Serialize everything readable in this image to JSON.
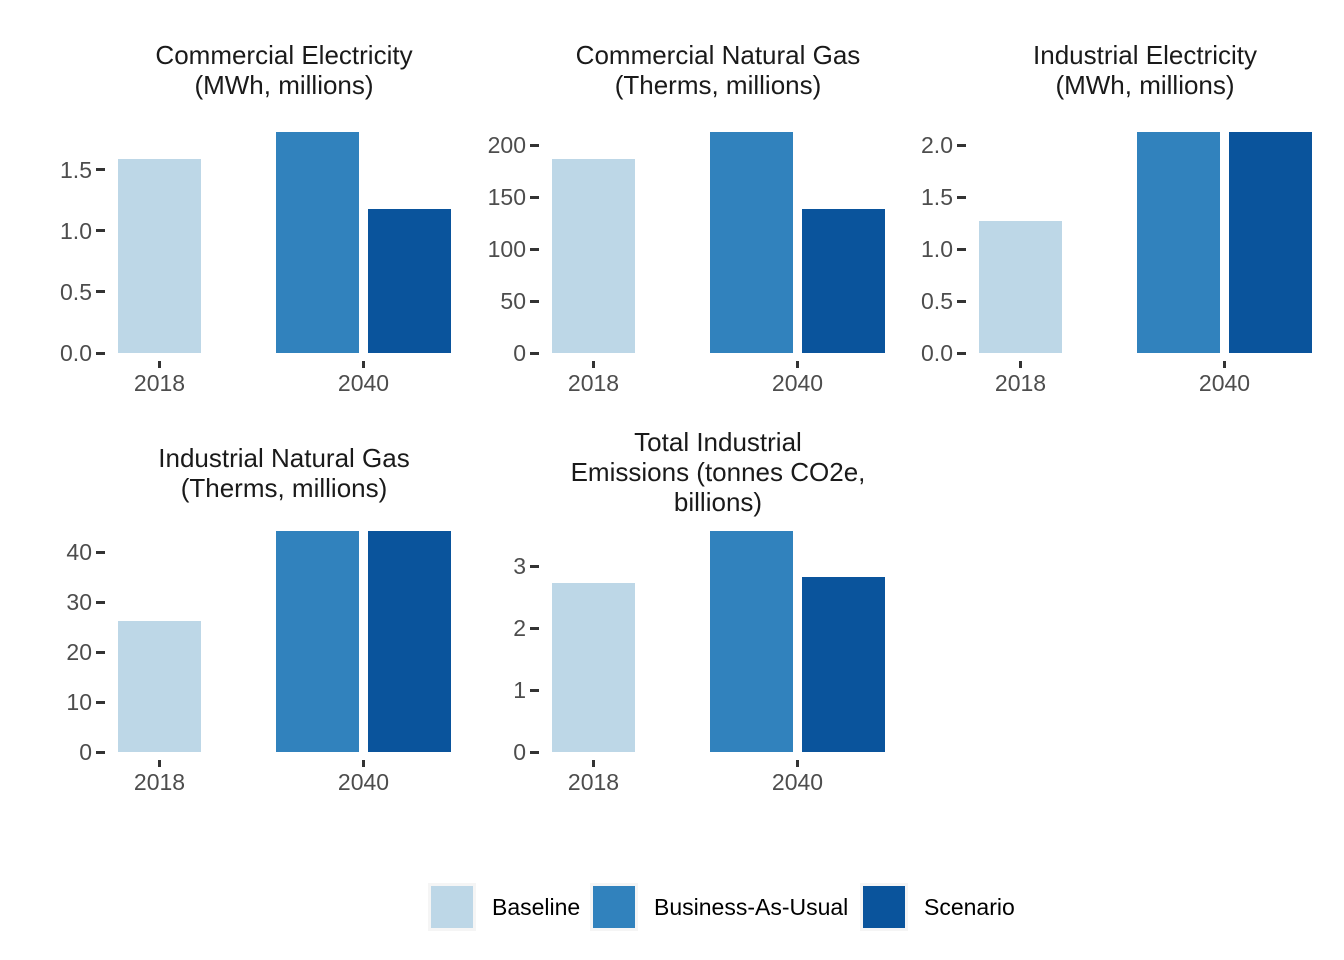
{
  "figure": {
    "description": "Faceted bar chart comparing Baseline (2018) with Business-As-Usual and Scenario (2040) projections across five energy and emissions measures"
  },
  "colors": {
    "baseline": "#BDD7E7",
    "business_as_usual": "#3182BD",
    "scenario": "#0A549C",
    "axis_text": "#4D4D4D",
    "tick_mark": "#333333",
    "title_text": "#1A1A1A",
    "background": "#FFFFFF",
    "legend_key_bg": "#F5F5F5",
    "legend_text": "#000000"
  },
  "legend": {
    "position": "bottom",
    "items": [
      {
        "label": "Baseline",
        "color": "#BDD7E7"
      },
      {
        "label": "Business-As-Usual",
        "color": "#3182BD"
      },
      {
        "label": "Scenario",
        "color": "#0A549C"
      }
    ]
  },
  "chart_data": [
    {
      "type": "bar",
      "id": "commercial-electricity",
      "title": "Commercial Electricity\n(MWh, millions)",
      "categories": [
        "2018",
        "2040"
      ],
      "series": [
        {
          "name": "Baseline",
          "values": [
            1.59,
            null
          ]
        },
        {
          "name": "Business-As-Usual",
          "values": [
            null,
            1.81
          ]
        },
        {
          "name": "Scenario",
          "values": [
            null,
            1.18
          ]
        }
      ],
      "yticks": [
        {
          "v": 0.0,
          "label": "0.0"
        },
        {
          "v": 0.5,
          "label": "0.5"
        },
        {
          "v": 1.0,
          "label": "1.0"
        },
        {
          "v": 1.5,
          "label": "1.5"
        }
      ],
      "ylim": [
        0,
        1.81
      ],
      "grid": false
    },
    {
      "type": "bar",
      "id": "commercial-natural-gas",
      "title": "Commercial Natural Gas\n(Therms, millions)",
      "categories": [
        "2018",
        "2040"
      ],
      "series": [
        {
          "name": "Baseline",
          "values": [
            187,
            null
          ]
        },
        {
          "name": "Business-As-Usual",
          "values": [
            null,
            213
          ]
        },
        {
          "name": "Scenario",
          "values": [
            null,
            139
          ]
        }
      ],
      "yticks": [
        {
          "v": 0,
          "label": "0"
        },
        {
          "v": 50,
          "label": "50"
        },
        {
          "v": 100,
          "label": "100"
        },
        {
          "v": 150,
          "label": "150"
        },
        {
          "v": 200,
          "label": "200"
        }
      ],
      "ylim": [
        0,
        213
      ],
      "grid": false
    },
    {
      "type": "bar",
      "id": "industrial-electricity",
      "title": "Industrial Electricity\n(MWh, millions)",
      "categories": [
        "2018",
        "2040"
      ],
      "series": [
        {
          "name": "Baseline",
          "values": [
            1.27,
            null
          ]
        },
        {
          "name": "Business-As-Usual",
          "values": [
            null,
            2.13
          ]
        },
        {
          "name": "Scenario",
          "values": [
            null,
            2.13
          ]
        }
      ],
      "yticks": [
        {
          "v": 0.0,
          "label": "0.0"
        },
        {
          "v": 0.5,
          "label": "0.5"
        },
        {
          "v": 1.0,
          "label": "1.0"
        },
        {
          "v": 1.5,
          "label": "1.5"
        },
        {
          "v": 2.0,
          "label": "2.0"
        }
      ],
      "ylim": [
        0,
        2.13
      ],
      "grid": false
    },
    {
      "type": "bar",
      "id": "industrial-natural-gas",
      "title": "Industrial Natural Gas\n(Therms, millions)",
      "categories": [
        "2018",
        "2040"
      ],
      "series": [
        {
          "name": "Baseline",
          "values": [
            26.3,
            null
          ]
        },
        {
          "name": "Business-As-Usual",
          "values": [
            null,
            44.3
          ]
        },
        {
          "name": "Scenario",
          "values": [
            null,
            44.3
          ]
        }
      ],
      "yticks": [
        {
          "v": 0,
          "label": "0"
        },
        {
          "v": 10,
          "label": "10"
        },
        {
          "v": 20,
          "label": "20"
        },
        {
          "v": 30,
          "label": "30"
        },
        {
          "v": 40,
          "label": "40"
        }
      ],
      "ylim": [
        0,
        44.3
      ],
      "grid": false
    },
    {
      "type": "bar",
      "id": "total-industrial-emissions",
      "title": "Total Industrial\nEmissions (tonnes CO2e,\nbillions)",
      "categories": [
        "2018",
        "2040"
      ],
      "series": [
        {
          "name": "Baseline",
          "values": [
            2.73,
            null
          ]
        },
        {
          "name": "Business-As-Usual",
          "values": [
            null,
            3.57
          ]
        },
        {
          "name": "Scenario",
          "values": [
            null,
            2.83
          ]
        }
      ],
      "yticks": [
        {
          "v": 0,
          "label": "0"
        },
        {
          "v": 1,
          "label": "1"
        },
        {
          "v": 2,
          "label": "2"
        },
        {
          "v": 3,
          "label": "3"
        }
      ],
      "ylim": [
        0,
        3.57
      ],
      "grid": false
    }
  ]
}
